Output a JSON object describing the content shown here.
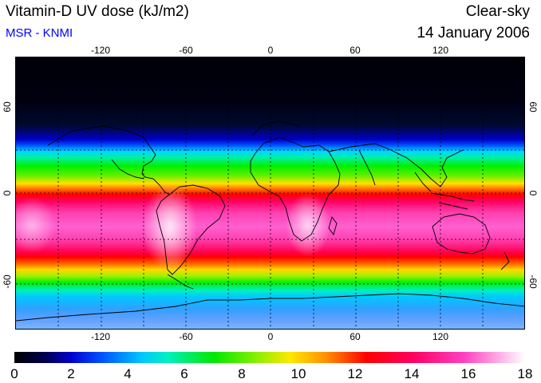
{
  "header": {
    "title": "Vitamin-D UV dose (kJ/m2)",
    "source": "MSR - KNMI",
    "condition": "Clear-sky",
    "date": "14 January 2006"
  },
  "map": {
    "longitude_ticks": [
      "-120",
      "-60",
      "0",
      "60",
      "120"
    ],
    "latitude_ticks": [
      "60",
      "0",
      "-60"
    ]
  },
  "colorbar": {
    "ticks": [
      "0",
      "2",
      "4",
      "6",
      "8",
      "10",
      "12",
      "14",
      "16",
      "18"
    ],
    "range": [
      0,
      18
    ]
  }
}
